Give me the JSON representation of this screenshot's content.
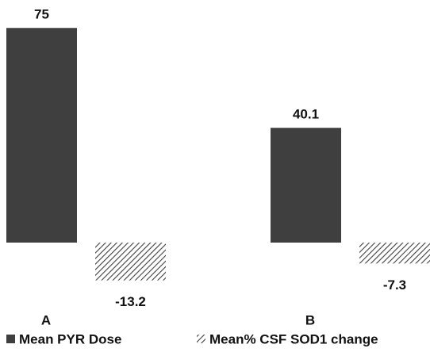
{
  "chart_data": {
    "type": "bar",
    "categories": [
      "A",
      "B"
    ],
    "series": [
      {
        "name": "Mean PYR Dose",
        "color": "#3f3f3f",
        "pattern": "solid",
        "values": [
          75,
          40.1
        ]
      },
      {
        "name": "Mean% CSF SOD1 change",
        "color": "#3f3f3f",
        "pattern": "hatch",
        "values": [
          -13.2,
          -7.3
        ]
      }
    ],
    "grid": false,
    "legend": "bottom"
  }
}
